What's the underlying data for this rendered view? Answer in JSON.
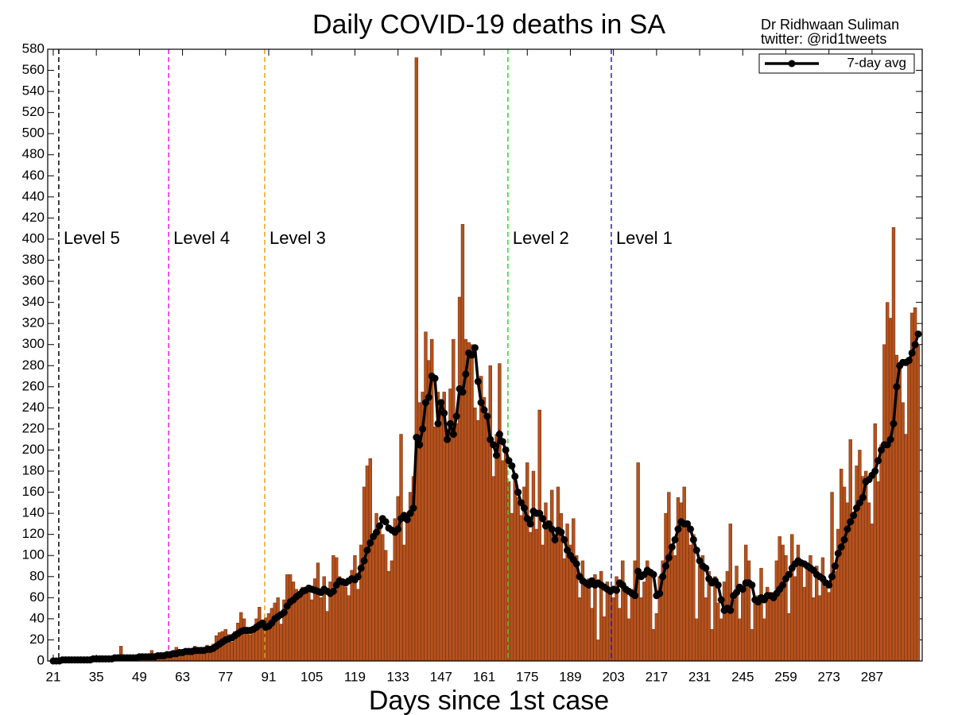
{
  "chart_data": {
    "type": "bar",
    "title": "Daily COVID-19 deaths in SA",
    "credit": [
      "Dr Ridhwaan Suliman",
      "twitter: @rid1tweets"
    ],
    "x_label": "Days since 1st case",
    "x": [
      21,
      22,
      23,
      24,
      25,
      26,
      27,
      28,
      29,
      30,
      31,
      32,
      33,
      34,
      35,
      36,
      37,
      38,
      39,
      40,
      41,
      42,
      43,
      44,
      45,
      46,
      47,
      48,
      49,
      50,
      51,
      52,
      53,
      54,
      55,
      56,
      57,
      58,
      59,
      60,
      61,
      62,
      63,
      64,
      65,
      66,
      67,
      68,
      69,
      70,
      71,
      72,
      73,
      74,
      75,
      76,
      77,
      78,
      79,
      80,
      81,
      82,
      83,
      84,
      85,
      86,
      87,
      88,
      89,
      90,
      91,
      92,
      93,
      94,
      95,
      96,
      97,
      98,
      99,
      100,
      101,
      102,
      103,
      104,
      105,
      106,
      107,
      108,
      109,
      110,
      111,
      112,
      113,
      114,
      115,
      116,
      117,
      118,
      119,
      120,
      121,
      122,
      123,
      124,
      125,
      126,
      127,
      128,
      129,
      130,
      131,
      132,
      133,
      134,
      135,
      136,
      137,
      138,
      139,
      140,
      141,
      142,
      143,
      144,
      145,
      146,
      147,
      148,
      149,
      150,
      151,
      152,
      153,
      154,
      155,
      156,
      157,
      158,
      159,
      160,
      161,
      162,
      163,
      164,
      165,
      166,
      167,
      168,
      169,
      170,
      171,
      172,
      173,
      174,
      175,
      176,
      177,
      178,
      179,
      180,
      181,
      182,
      183,
      184,
      185,
      186,
      187,
      188,
      189,
      190,
      191,
      192,
      193,
      194,
      195,
      196,
      197,
      198,
      199,
      200,
      201,
      202,
      203,
      204,
      205,
      206,
      207,
      208,
      209,
      210,
      211,
      212,
      213,
      214,
      215,
      216,
      217,
      218,
      219,
      220,
      221,
      222,
      223,
      224,
      225,
      226,
      227,
      228,
      229,
      230,
      231,
      232,
      233,
      234,
      235,
      236,
      237,
      238,
      239,
      240,
      241,
      242,
      243,
      244,
      245,
      246,
      247,
      248,
      249,
      250,
      251,
      252,
      253,
      254,
      255,
      256,
      257,
      258,
      259,
      260,
      261,
      262,
      263,
      264,
      265,
      266,
      267,
      268,
      269,
      270,
      271,
      272,
      273,
      274,
      275,
      276,
      277,
      278,
      279,
      280,
      281,
      282,
      283,
      284,
      285,
      286,
      287,
      288,
      289,
      290,
      291,
      292,
      293,
      294,
      295,
      296,
      297,
      298,
      299,
      300,
      301,
      302
    ],
    "values": [
      1,
      0,
      0,
      1,
      1,
      2,
      1,
      1,
      0,
      1,
      2,
      1,
      2,
      2,
      3,
      1,
      2,
      3,
      2,
      3,
      2,
      4,
      14,
      3,
      3,
      5,
      4,
      3,
      4,
      5,
      4,
      6,
      10,
      5,
      7,
      6,
      5,
      7,
      8,
      10,
      13,
      9,
      7,
      11,
      12,
      8,
      14,
      12,
      13,
      9,
      15,
      12,
      16,
      24,
      27,
      28,
      30,
      25,
      18,
      28,
      36,
      46,
      40,
      30,
      25,
      33,
      40,
      51,
      31,
      41,
      45,
      50,
      55,
      60,
      35,
      58,
      82,
      82,
      75,
      68,
      60,
      70,
      65,
      72,
      58,
      78,
      93,
      60,
      80,
      47,
      75,
      100,
      98,
      80,
      72,
      70,
      62,
      86,
      100,
      68,
      110,
      165,
      185,
      192,
      115,
      140,
      130,
      120,
      105,
      85,
      95,
      135,
      156,
      215,
      110,
      135,
      160,
      175,
      572,
      245,
      255,
      312,
      285,
      305,
      222,
      255,
      240,
      255,
      210,
      258,
      305,
      225,
      345,
      414,
      305,
      302,
      300,
      240,
      228,
      270,
      250,
      230,
      280,
      175,
      215,
      282,
      190,
      200,
      170,
      140,
      178,
      155,
      138,
      165,
      188,
      122,
      180,
      125,
      238,
      110,
      150,
      125,
      162,
      115,
      165,
      140,
      97,
      130,
      110,
      135,
      100,
      60,
      95,
      75,
      78,
      50,
      82,
      20,
      85,
      42,
      75,
      68,
      60,
      80,
      50,
      95,
      70,
      40,
      68,
      95,
      188,
      60,
      75,
      95,
      85,
      30,
      45,
      80,
      95,
      140,
      160,
      110,
      100,
      155,
      150,
      165,
      130,
      110,
      120,
      40,
      95,
      100,
      60,
      85,
      30,
      80,
      55,
      40,
      75,
      85,
      130,
      58,
      90,
      40,
      65,
      110,
      95,
      30,
      55,
      62,
      88,
      40,
      70,
      60,
      65,
      95,
      118,
      110,
      100,
      45,
      120,
      80,
      110,
      95,
      70,
      88,
      100,
      60,
      90,
      62,
      98,
      70,
      65,
      160,
      85,
      125,
      182,
      165,
      150,
      210,
      135,
      185,
      200,
      175,
      180,
      150,
      130,
      225,
      170,
      205,
      300,
      340,
      325,
      411,
      290,
      280,
      245,
      215,
      285,
      330,
      335,
      300
    ],
    "color": "#b5521e",
    "lines": [
      {
        "name": "7-day avg",
        "color": "#000000",
        "values": [
          0,
          0,
          0,
          1,
          1,
          1,
          1,
          1,
          1,
          1,
          1,
          1,
          1,
          2,
          2,
          2,
          2,
          2,
          2,
          2,
          3,
          3,
          3,
          3,
          3,
          3,
          3,
          3,
          4,
          4,
          4,
          4,
          4,
          4,
          5,
          5,
          5,
          6,
          6,
          7,
          7,
          8,
          8,
          9,
          9,
          9,
          10,
          10,
          10,
          10,
          11,
          11,
          12,
          14,
          16,
          18,
          20,
          21,
          22,
          24,
          26,
          28,
          29,
          29,
          29,
          30,
          32,
          34,
          36,
          32,
          33,
          36,
          40,
          42,
          44,
          46,
          52,
          56,
          58,
          61,
          63,
          66,
          67,
          69,
          68,
          67,
          66,
          65,
          68,
          66,
          64,
          66,
          72,
          76,
          75,
          74,
          76,
          78,
          77,
          80,
          88,
          95,
          105,
          112,
          118,
          122,
          128,
          135,
          132,
          126,
          124,
          122,
          125,
          135,
          138,
          134,
          140,
          145,
          212,
          205,
          220,
          245,
          250,
          270,
          268,
          225,
          245,
          235,
          210,
          225,
          215,
          232,
          258,
          255,
          272,
          292,
          290,
          297,
          265,
          245,
          238,
          232,
          210,
          205,
          195,
          215,
          208,
          200,
          190,
          185,
          175,
          160,
          150,
          145,
          135,
          130,
          142,
          140,
          140,
          135,
          128,
          130,
          125,
          115,
          124,
          122,
          115,
          105,
          100,
          96,
          92,
          80,
          76,
          74,
          72,
          76,
          72,
          74,
          72,
          70,
          68,
          66,
          68,
          67,
          74,
          72,
          68,
          66,
          64,
          62,
          85,
          80,
          82,
          86,
          84,
          82,
          62,
          64,
          80,
          90,
          98,
          108,
          115,
          125,
          132,
          130,
          130,
          125,
          115,
          105,
          95,
          90,
          88,
          78,
          74,
          76,
          72,
          58,
          48,
          50,
          48,
          62,
          65,
          70,
          68,
          74,
          74,
          72,
          58,
          56,
          60,
          58,
          62,
          62,
          60,
          64,
          68,
          72,
          78,
          82,
          88,
          92,
          95,
          93,
          92,
          90,
          88,
          86,
          82,
          80,
          78,
          74,
          72,
          80,
          90,
          102,
          108,
          115,
          125,
          132,
          138,
          145,
          150,
          155,
          170,
          172,
          176,
          180,
          190,
          200,
          205,
          205,
          210,
          225,
          260,
          280,
          283,
          283,
          285,
          292,
          300,
          310
        ]
      }
    ],
    "levels": [
      {
        "label": "Level 5",
        "x": 22.8,
        "line_color": "#000000",
        "label_color": "#e8000b"
      },
      {
        "label": "Level 4",
        "x": 58.5,
        "line_color": "#e020e0",
        "label_color": "#e020e0"
      },
      {
        "label": "Level 3",
        "x": 89.7,
        "line_color": "#e8a020",
        "label_color": "#e8a020"
      },
      {
        "label": "Level 2",
        "x": 168.7,
        "line_color": "#22dd22",
        "label_color": "#22dd22"
      },
      {
        "label": "Level 1",
        "x": 202.3,
        "line_color": "#2020cc",
        "label_color": "#2020cc"
      }
    ],
    "xlim": [
      19.2,
      303.3
    ],
    "xticks": [
      21,
      35,
      49,
      63,
      77,
      91,
      105,
      119,
      133,
      147,
      161,
      175,
      189,
      203,
      217,
      231,
      245,
      259,
      273,
      287
    ],
    "ylim": [
      0,
      580
    ],
    "yticks": [
      0,
      20,
      40,
      60,
      80,
      100,
      120,
      140,
      160,
      180,
      200,
      220,
      240,
      260,
      280,
      300,
      320,
      340,
      360,
      380,
      400,
      420,
      440,
      460,
      480,
      500,
      520,
      540,
      560,
      580
    ],
    "legend": "top-right"
  }
}
